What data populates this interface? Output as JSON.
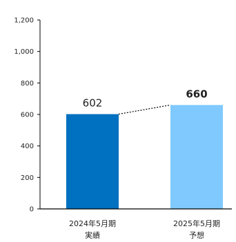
{
  "chart_data": {
    "type": "bar",
    "categories": [
      {
        "line1": "2024年5月期",
        "line2": "実績"
      },
      {
        "line1": "2025年5月期",
        "line2": "予想"
      }
    ],
    "values": [
      602,
      660
    ],
    "value_labels": [
      "602",
      "660"
    ],
    "value_label_bold": [
      false,
      true
    ],
    "ylim": [
      0,
      1200
    ],
    "yticks": [
      0,
      200,
      400,
      600,
      800,
      1000,
      1200
    ],
    "ytick_labels": [
      "0",
      "200",
      "400",
      "600",
      "800",
      "1,000",
      "1,200"
    ],
    "colors": [
      "#0070C0",
      "#7FC9FF"
    ],
    "connector": "dotted",
    "grid": false
  }
}
